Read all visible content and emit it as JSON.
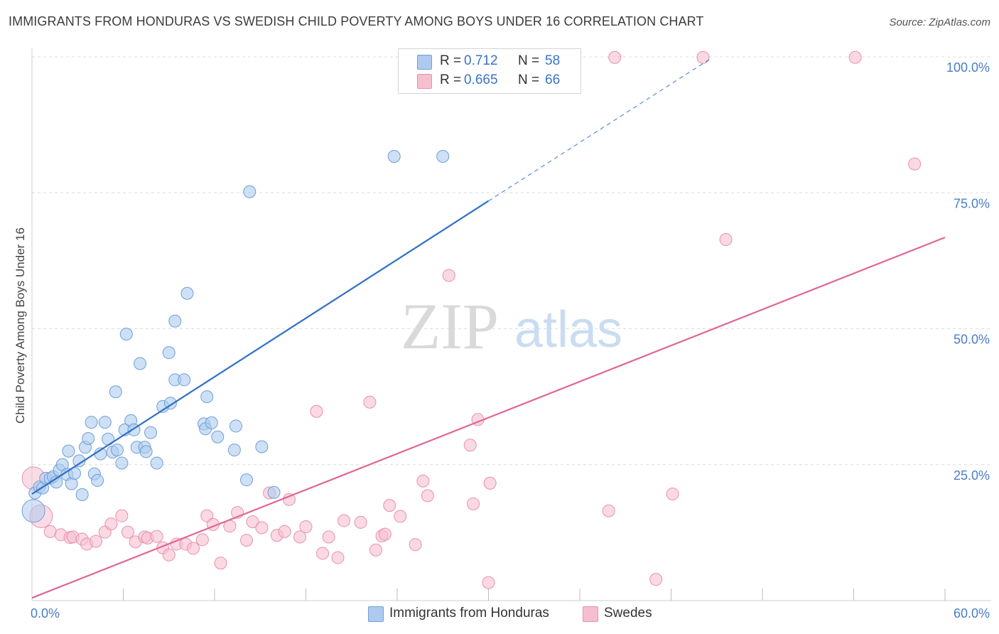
{
  "title": "IMMIGRANTS FROM HONDURAS VS SWEDISH CHILD POVERTY AMONG BOYS UNDER 16 CORRELATION CHART",
  "source": "Source: ZipAtlas.com",
  "watermark": {
    "zip": "ZIP",
    "atlas": "atlas"
  },
  "colors": {
    "blue_fill": "#aecbef",
    "blue_stroke": "#6f9fd8",
    "blue_line": "#2e6fc7",
    "pink_fill": "#f6bfd0",
    "pink_stroke": "#e990ae",
    "pink_line": "#e26594",
    "axis_text": "#4a7cc9",
    "grid": "#dcdcdc"
  },
  "legend": {
    "r_label": "R =",
    "n_label": "N =",
    "series": [
      {
        "r": "0.712",
        "n": "58"
      },
      {
        "r": "0.665",
        "n": "66"
      }
    ]
  },
  "chart_data": {
    "type": "scatter",
    "title": "IMMIGRANTS FROM HONDURAS VS SWEDISH CHILD POVERTY AMONG BOYS UNDER 16 CORRELATION CHART",
    "xlabel": "",
    "ylabel": "Child Poverty Among Boys Under 16",
    "xlim": [
      0,
      60
    ],
    "ylim": [
      0,
      102
    ],
    "x_tick_labels": [
      "0.0%",
      "60.0%"
    ],
    "y_tick_labels": [
      {
        "value": 25,
        "label": "25.0%"
      },
      {
        "value": 50,
        "label": "50.0%"
      },
      {
        "value": 75,
        "label": "75.0%"
      },
      {
        "value": 100,
        "label": "100.0%"
      }
    ],
    "x_minor_ticks": [
      6,
      12,
      18,
      24,
      30,
      36,
      42,
      48,
      54,
      60
    ],
    "series": [
      {
        "name": "Immigrants from Honduras",
        "r": 0.712,
        "n": 58,
        "trend": {
          "x0": 0,
          "y0": 19.6,
          "x1": 30,
          "y1": 73.5,
          "dash_to_x": 44.5,
          "dash_to_y": 99.5
        },
        "points": [
          [
            0.1,
            16.5
          ],
          [
            0.2,
            19.8
          ],
          [
            0.5,
            20.9
          ],
          [
            0.7,
            20.7
          ],
          [
            0.9,
            22.5
          ],
          [
            1.2,
            22.5
          ],
          [
            1.4,
            22.8
          ],
          [
            1.6,
            21.8
          ],
          [
            1.8,
            24.0
          ],
          [
            2.0,
            25.0
          ],
          [
            2.3,
            23.2
          ],
          [
            2.4,
            27.5
          ],
          [
            2.6,
            21.5
          ],
          [
            2.8,
            23.4
          ],
          [
            3.1,
            25.7
          ],
          [
            3.3,
            19.5
          ],
          [
            3.5,
            28.2
          ],
          [
            3.7,
            29.8
          ],
          [
            3.9,
            32.8
          ],
          [
            4.1,
            23.3
          ],
          [
            4.3,
            22.1
          ],
          [
            4.5,
            27.0
          ],
          [
            4.8,
            32.8
          ],
          [
            5.0,
            29.7
          ],
          [
            5.3,
            27.3
          ],
          [
            5.6,
            27.7
          ],
          [
            5.5,
            38.4
          ],
          [
            5.9,
            25.3
          ],
          [
            6.1,
            31.4
          ],
          [
            6.2,
            49.0
          ],
          [
            6.5,
            33.1
          ],
          [
            6.7,
            31.4
          ],
          [
            6.9,
            28.2
          ],
          [
            7.1,
            43.6
          ],
          [
            7.4,
            28.2
          ],
          [
            7.5,
            27.4
          ],
          [
            7.8,
            30.9
          ],
          [
            8.2,
            25.3
          ],
          [
            8.6,
            35.7
          ],
          [
            9.0,
            45.6
          ],
          [
            9.1,
            36.3
          ],
          [
            9.4,
            51.4
          ],
          [
            9.4,
            40.6
          ],
          [
            10.0,
            40.6
          ],
          [
            10.2,
            56.5
          ],
          [
            11.3,
            32.5
          ],
          [
            11.4,
            31.6
          ],
          [
            11.5,
            37.5
          ],
          [
            11.8,
            32.7
          ],
          [
            12.2,
            30.1
          ],
          [
            13.3,
            27.7
          ],
          [
            13.4,
            32.1
          ],
          [
            14.3,
            75.2
          ],
          [
            15.1,
            28.3
          ],
          [
            14.1,
            22.2
          ],
          [
            15.9,
            19.9
          ],
          [
            23.8,
            81.7
          ],
          [
            27.0,
            81.7
          ]
        ],
        "large_points": [
          [
            0.1,
            16.5
          ]
        ]
      },
      {
        "name": "Swedes",
        "r": 0.665,
        "n": 66,
        "trend": {
          "x0": 0,
          "y0": 0.5,
          "x1": 60,
          "y1": 66.8
        },
        "points": [
          [
            0.1,
            22.5
          ],
          [
            0.6,
            15.5
          ],
          [
            1.2,
            12.7
          ],
          [
            1.9,
            12.1
          ],
          [
            2.5,
            11.6
          ],
          [
            2.7,
            11.7
          ],
          [
            3.3,
            11.3
          ],
          [
            3.6,
            10.4
          ],
          [
            4.2,
            10.9
          ],
          [
            4.8,
            12.6
          ],
          [
            5.2,
            14.1
          ],
          [
            5.9,
            15.6
          ],
          [
            6.3,
            12.6
          ],
          [
            6.8,
            10.8
          ],
          [
            7.4,
            11.7
          ],
          [
            7.6,
            11.5
          ],
          [
            8.2,
            11.8
          ],
          [
            8.6,
            9.7
          ],
          [
            9.0,
            8.4
          ],
          [
            9.5,
            10.4
          ],
          [
            10.1,
            10.4
          ],
          [
            10.6,
            9.6
          ],
          [
            11.2,
            11.2
          ],
          [
            11.5,
            15.6
          ],
          [
            11.9,
            14.0
          ],
          [
            12.4,
            6.9
          ],
          [
            13.0,
            13.7
          ],
          [
            13.5,
            16.2
          ],
          [
            14.1,
            11.1
          ],
          [
            14.5,
            14.5
          ],
          [
            15.1,
            13.4
          ],
          [
            15.6,
            19.8
          ],
          [
            16.1,
            12.0
          ],
          [
            16.6,
            12.7
          ],
          [
            16.9,
            18.6
          ],
          [
            17.6,
            11.7
          ],
          [
            18.0,
            13.6
          ],
          [
            18.7,
            34.8
          ],
          [
            19.1,
            8.7
          ],
          [
            19.5,
            11.7
          ],
          [
            20.1,
            7.9
          ],
          [
            20.5,
            14.7
          ],
          [
            21.6,
            14.4
          ],
          [
            22.2,
            36.5
          ],
          [
            22.6,
            9.3
          ],
          [
            23.0,
            11.9
          ],
          [
            23.5,
            17.5
          ],
          [
            23.2,
            12.2
          ],
          [
            24.2,
            15.5
          ],
          [
            25.2,
            10.3
          ],
          [
            25.7,
            22.0
          ],
          [
            26.0,
            19.3
          ],
          [
            27.4,
            59.8
          ],
          [
            28.8,
            28.6
          ],
          [
            29.3,
            33.3
          ],
          [
            30.1,
            21.6
          ],
          [
            29.0,
            17.8
          ],
          [
            30.0,
            3.3
          ],
          [
            37.9,
            16.5
          ],
          [
            38.3,
            99.9
          ],
          [
            41.0,
            3.9
          ],
          [
            42.1,
            19.6
          ],
          [
            44.1,
            99.9
          ],
          [
            45.6,
            66.4
          ],
          [
            54.1,
            99.9
          ],
          [
            58.0,
            80.3
          ]
        ],
        "large_points": [
          [
            0.1,
            22.5
          ],
          [
            0.6,
            15.5
          ]
        ]
      }
    ]
  },
  "bottom_legend": [
    "Immigrants from Honduras",
    "Swedes"
  ]
}
